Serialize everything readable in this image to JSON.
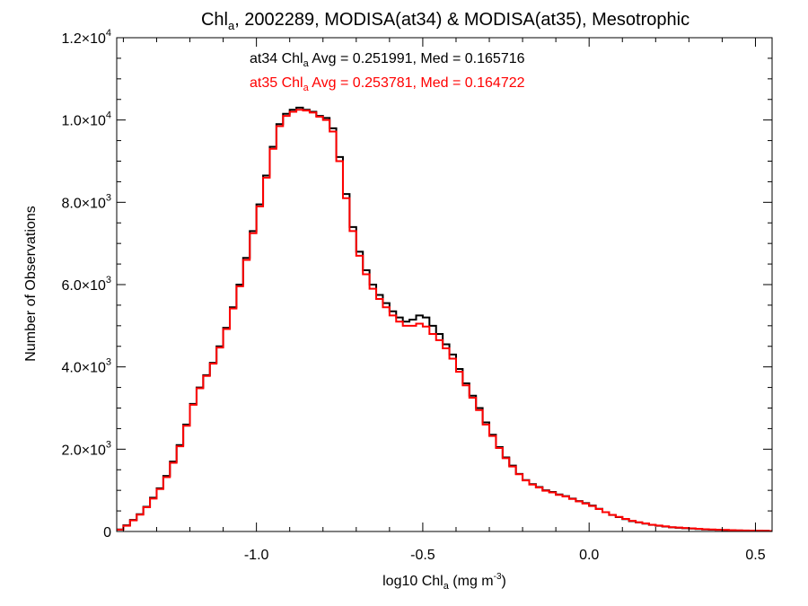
{
  "chart_data": {
    "type": "line",
    "title": {
      "pre": "Chl",
      "sub": "a",
      "post": ", 2002289, MODISA(at34) & MODISA(at35), Mesotrophic"
    },
    "xlabel": {
      "pre": "log10 Chl",
      "sub": "a",
      "mid": " (mg m",
      "sup": "-3",
      "post": ")"
    },
    "ylabel": "Number of Observations",
    "xlim": [
      -1.42,
      0.55
    ],
    "ylim": [
      0,
      12000
    ],
    "x_ticks": [
      {
        "value": -1.0,
        "label": "-1.0"
      },
      {
        "value": -0.5,
        "label": "-0.5"
      },
      {
        "value": 0.0,
        "label": "0.0"
      },
      {
        "value": 0.5,
        "label": "0.5"
      }
    ],
    "y_ticks": [
      {
        "value": 0,
        "label": "0",
        "mant": "0",
        "exp": ""
      },
      {
        "value": 2000,
        "label": "2.0×10^3",
        "mant": "2.0×10",
        "exp": "3"
      },
      {
        "value": 4000,
        "label": "4.0×10^3",
        "mant": "4.0×10",
        "exp": "3"
      },
      {
        "value": 6000,
        "label": "6.0×10^3",
        "mant": "6.0×10",
        "exp": "3"
      },
      {
        "value": 8000,
        "label": "8.0×10^3",
        "mant": "8.0×10",
        "exp": "3"
      },
      {
        "value": 10000,
        "label": "1.0×10^4",
        "mant": "1.0×10",
        "exp": "4"
      },
      {
        "value": 12000,
        "label": "1.2×10^4",
        "mant": "1.2×10",
        "exp": "4"
      }
    ],
    "annotations": [
      {
        "pre": "at34 Chl",
        "sub": "a",
        "post": " Avg = 0.251991, Med = 0.165716",
        "color": "#000000"
      },
      {
        "pre": "at35 Chl",
        "sub": "a",
        "post": " Avg = 0.253781, Med = 0.164722",
        "color": "#ff0000"
      }
    ],
    "grid": false,
    "series": [
      {
        "color": "#000000",
        "x": [
          -1.42,
          -1.4,
          -1.38,
          -1.36,
          -1.34,
          -1.32,
          -1.3,
          -1.28,
          -1.26,
          -1.24,
          -1.22,
          -1.2,
          -1.18,
          -1.16,
          -1.14,
          -1.12,
          -1.1,
          -1.08,
          -1.06,
          -1.04,
          -1.02,
          -1.0,
          -0.98,
          -0.96,
          -0.94,
          -0.92,
          -0.9,
          -0.88,
          -0.86,
          -0.84,
          -0.82,
          -0.8,
          -0.78,
          -0.76,
          -0.74,
          -0.72,
          -0.7,
          -0.68,
          -0.66,
          -0.64,
          -0.62,
          -0.6,
          -0.58,
          -0.56,
          -0.54,
          -0.52,
          -0.5,
          -0.48,
          -0.46,
          -0.44,
          -0.42,
          -0.4,
          -0.38,
          -0.36,
          -0.34,
          -0.32,
          -0.3,
          -0.28,
          -0.26,
          -0.24,
          -0.22,
          -0.2,
          -0.18,
          -0.16,
          -0.14,
          -0.12,
          -0.1,
          -0.08,
          -0.06,
          -0.04,
          -0.02,
          0.0,
          0.02,
          0.04,
          0.06,
          0.08,
          0.1,
          0.12,
          0.14,
          0.16,
          0.18,
          0.2,
          0.22,
          0.24,
          0.26,
          0.28,
          0.3,
          0.32,
          0.34,
          0.36,
          0.38,
          0.4,
          0.42,
          0.44,
          0.46,
          0.48,
          0.5,
          0.52,
          0.54
        ],
        "values": [
          50,
          150,
          280,
          420,
          600,
          820,
          1050,
          1350,
          1700,
          2100,
          2600,
          3100,
          3500,
          3800,
          4100,
          4500,
          4950,
          5450,
          6000,
          6650,
          7300,
          7950,
          8650,
          9350,
          9900,
          10150,
          10250,
          10300,
          10250,
          10200,
          10100,
          10050,
          9800,
          9100,
          8200,
          7400,
          6800,
          6350,
          6000,
          5750,
          5550,
          5350,
          5200,
          5100,
          5150,
          5250,
          5200,
          5000,
          4800,
          4550,
          4300,
          3950,
          3600,
          3300,
          3000,
          2650,
          2350,
          2050,
          1800,
          1600,
          1400,
          1250,
          1150,
          1080,
          1000,
          960,
          900,
          860,
          800,
          740,
          690,
          630,
          550,
          470,
          400,
          350,
          300,
          250,
          220,
          190,
          160,
          140,
          120,
          100,
          90,
          80,
          70,
          60,
          50,
          45,
          40,
          35,
          30,
          25,
          22,
          20,
          18,
          15,
          12
        ]
      },
      {
        "color": "#ff0000",
        "x": [
          -1.42,
          -1.4,
          -1.38,
          -1.36,
          -1.34,
          -1.32,
          -1.3,
          -1.28,
          -1.26,
          -1.24,
          -1.22,
          -1.2,
          -1.18,
          -1.16,
          -1.14,
          -1.12,
          -1.1,
          -1.08,
          -1.06,
          -1.04,
          -1.02,
          -1.0,
          -0.98,
          -0.96,
          -0.94,
          -0.92,
          -0.9,
          -0.88,
          -0.86,
          -0.84,
          -0.82,
          -0.8,
          -0.78,
          -0.76,
          -0.74,
          -0.72,
          -0.7,
          -0.68,
          -0.66,
          -0.64,
          -0.62,
          -0.6,
          -0.58,
          -0.56,
          -0.54,
          -0.52,
          -0.5,
          -0.48,
          -0.46,
          -0.44,
          -0.42,
          -0.4,
          -0.38,
          -0.36,
          -0.34,
          -0.32,
          -0.3,
          -0.28,
          -0.26,
          -0.24,
          -0.22,
          -0.2,
          -0.18,
          -0.16,
          -0.14,
          -0.12,
          -0.1,
          -0.08,
          -0.06,
          -0.04,
          -0.02,
          0.0,
          0.02,
          0.04,
          0.06,
          0.08,
          0.1,
          0.12,
          0.14,
          0.16,
          0.18,
          0.2,
          0.22,
          0.24,
          0.26,
          0.28,
          0.3,
          0.32,
          0.34,
          0.36,
          0.38,
          0.4,
          0.42,
          0.44,
          0.46,
          0.48,
          0.5,
          0.52,
          0.54
        ],
        "values": [
          45,
          140,
          270,
          410,
          590,
          800,
          1030,
          1320,
          1670,
          2070,
          2570,
          3080,
          3480,
          3780,
          4080,
          4470,
          4920,
          5420,
          5960,
          6600,
          7250,
          7900,
          8600,
          9300,
          9850,
          10100,
          10200,
          10250,
          10230,
          10180,
          10080,
          10000,
          9720,
          9000,
          8100,
          7300,
          6700,
          6250,
          5900,
          5650,
          5450,
          5250,
          5100,
          5000,
          5000,
          5050,
          4980,
          4800,
          4650,
          4450,
          4200,
          3880,
          3550,
          3250,
          2950,
          2600,
          2320,
          2030,
          1780,
          1580,
          1390,
          1240,
          1140,
          1070,
          990,
          950,
          890,
          850,
          790,
          730,
          680,
          620,
          545,
          470,
          405,
          355,
          305,
          258,
          225,
          195,
          165,
          145,
          125,
          105,
          95,
          85,
          75,
          65,
          55,
          48,
          42,
          38,
          33,
          28,
          24,
          21,
          18,
          15,
          12
        ]
      }
    ]
  }
}
